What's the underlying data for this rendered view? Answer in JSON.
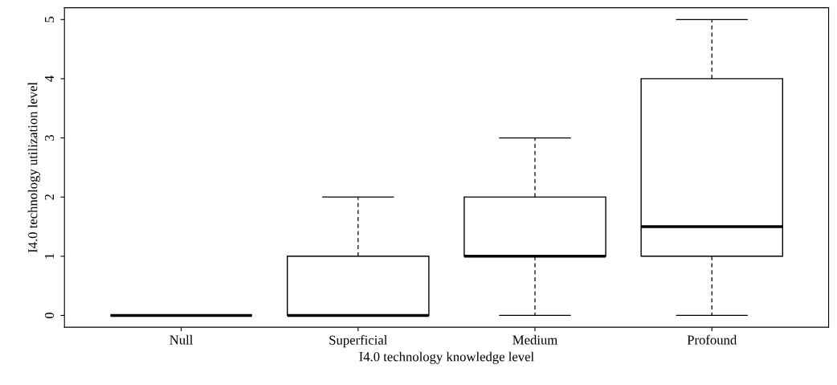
{
  "chart_data": {
    "type": "box",
    "xlabel": "I4.0 technology knowledge level",
    "ylabel": "I4.0 technology utilization level",
    "categories": [
      "Null",
      "Superficial",
      "Medium",
      "Profound"
    ],
    "boxes": [
      {
        "low": 0,
        "q1": 0,
        "median": 0,
        "q3": 0,
        "high": 0
      },
      {
        "low": 0,
        "q1": 0,
        "median": 0,
        "q3": 1,
        "high": 2
      },
      {
        "low": 0,
        "q1": 1,
        "median": 1,
        "q3": 2,
        "high": 3
      },
      {
        "low": 0,
        "q1": 1,
        "median": 1.5,
        "q3": 4,
        "high": 5
      }
    ],
    "ylim": [
      -0.2,
      5.2
    ],
    "yticks": [
      0,
      1,
      2,
      3,
      4,
      5
    ],
    "grid": false
  }
}
